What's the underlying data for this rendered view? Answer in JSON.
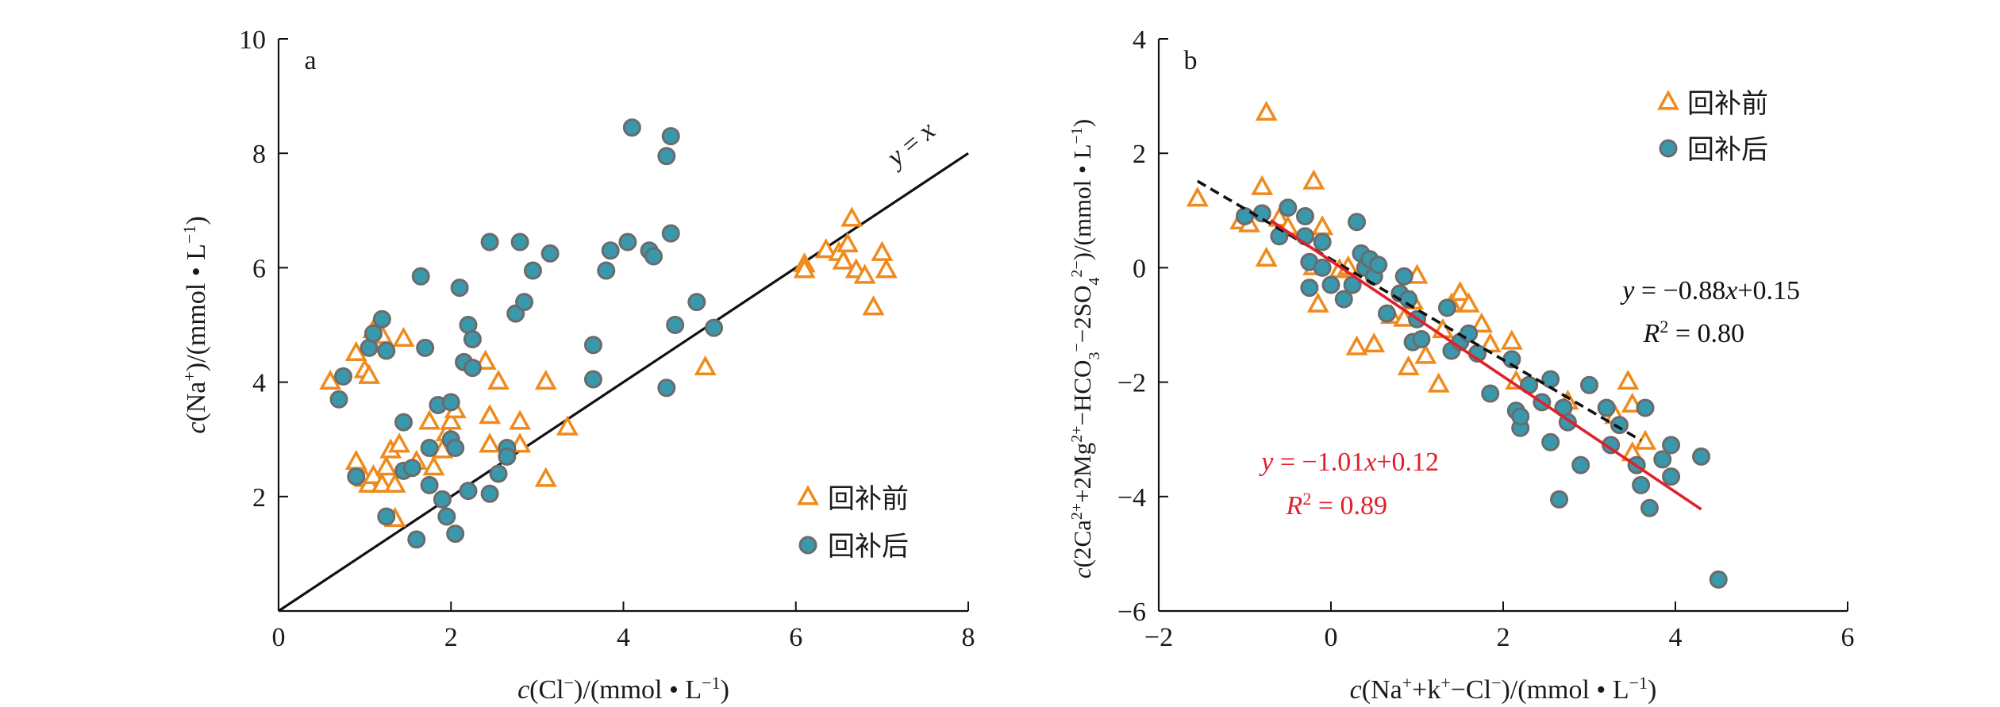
{
  "chart_data": [
    {
      "panel": "a",
      "type": "scatter",
      "xlabel": "c(Cl⁻)/(mmol • L⁻¹)",
      "ylabel": "c(Na⁺)/(mmol • L⁻¹)",
      "xlim": [
        0,
        8
      ],
      "ylim": [
        0,
        10
      ],
      "xticks": [
        "0",
        "2",
        "4",
        "6",
        "8"
      ],
      "yticks": [
        "2",
        "4",
        "6",
        "8",
        "10"
      ],
      "legend_position": "bottom-right",
      "reference_line": {
        "label": "y = x",
        "from": [
          0,
          0
        ],
        "to": [
          8,
          8
        ],
        "color": "#111111"
      },
      "series": [
        {
          "name": "回补前",
          "marker": "triangle",
          "color": "#f08a1c",
          "points": [
            [
              0.6,
              4.0
            ],
            [
              0.9,
              4.5
            ],
            [
              1.0,
              4.2
            ],
            [
              1.05,
              4.1
            ],
            [
              1.1,
              4.9
            ],
            [
              1.2,
              4.8
            ],
            [
              1.45,
              4.75
            ],
            [
              0.9,
              2.6
            ],
            [
              1.0,
              2.3
            ],
            [
              1.05,
              2.2
            ],
            [
              1.1,
              2.35
            ],
            [
              1.2,
              2.2
            ],
            [
              1.25,
              2.5
            ],
            [
              1.3,
              2.8
            ],
            [
              1.35,
              2.2
            ],
            [
              1.4,
              2.9
            ],
            [
              1.35,
              1.6
            ],
            [
              1.6,
              2.6
            ],
            [
              1.75,
              3.3
            ],
            [
              1.8,
              2.5
            ],
            [
              1.9,
              2.8
            ],
            [
              1.95,
              3.1
            ],
            [
              2.0,
              3.3
            ],
            [
              2.05,
              3.5
            ],
            [
              2.4,
              4.35
            ],
            [
              2.45,
              3.4
            ],
            [
              2.45,
              2.9
            ],
            [
              2.55,
              4.0
            ],
            [
              2.8,
              3.3
            ],
            [
              2.8,
              2.9
            ],
            [
              3.1,
              4.0
            ],
            [
              3.1,
              2.3
            ],
            [
              3.35,
              3.2
            ],
            [
              4.95,
              4.25
            ],
            [
              6.1,
              6.05
            ],
            [
              6.1,
              5.95
            ],
            [
              6.35,
              6.3
            ],
            [
              6.5,
              6.25
            ],
            [
              6.55,
              6.1
            ],
            [
              6.6,
              6.4
            ],
            [
              6.65,
              6.85
            ],
            [
              6.7,
              5.95
            ],
            [
              6.8,
              5.85
            ],
            [
              6.9,
              5.3
            ],
            [
              7.0,
              6.25
            ],
            [
              7.05,
              5.95
            ]
          ]
        },
        {
          "name": "回补后",
          "marker": "circle",
          "color": "#3a98ad",
          "points": [
            [
              0.7,
              3.7
            ],
            [
              0.75,
              4.1
            ],
            [
              0.9,
              2.35
            ],
            [
              1.05,
              4.6
            ],
            [
              1.1,
              4.85
            ],
            [
              1.2,
              5.1
            ],
            [
              1.25,
              4.55
            ],
            [
              1.25,
              1.65
            ],
            [
              1.45,
              3.3
            ],
            [
              1.45,
              2.45
            ],
            [
              1.55,
              2.5
            ],
            [
              1.65,
              5.85
            ],
            [
              1.7,
              4.6
            ],
            [
              1.75,
              2.2
            ],
            [
              1.75,
              2.85
            ],
            [
              1.85,
              3.6
            ],
            [
              1.9,
              1.95
            ],
            [
              1.95,
              1.65
            ],
            [
              2.0,
              3.65
            ],
            [
              2.0,
              3.0
            ],
            [
              2.05,
              1.35
            ],
            [
              2.05,
              2.85
            ],
            [
              2.1,
              5.65
            ],
            [
              2.15,
              4.35
            ],
            [
              2.2,
              5.0
            ],
            [
              2.25,
              4.25
            ],
            [
              2.25,
              4.75
            ],
            [
              2.2,
              2.1
            ],
            [
              2.45,
              6.45
            ],
            [
              2.45,
              2.05
            ],
            [
              2.55,
              2.4
            ],
            [
              2.65,
              2.85
            ],
            [
              2.65,
              2.7
            ],
            [
              2.75,
              5.2
            ],
            [
              2.8,
              6.45
            ],
            [
              2.85,
              5.4
            ],
            [
              2.95,
              5.95
            ],
            [
              3.15,
              6.25
            ],
            [
              3.65,
              4.65
            ],
            [
              3.65,
              4.05
            ],
            [
              3.8,
              5.95
            ],
            [
              3.85,
              6.3
            ],
            [
              4.05,
              6.45
            ],
            [
              4.1,
              8.45
            ],
            [
              4.3,
              6.3
            ],
            [
              4.35,
              6.2
            ],
            [
              4.5,
              7.95
            ],
            [
              4.5,
              3.9
            ],
            [
              4.55,
              8.3
            ],
            [
              4.55,
              6.6
            ],
            [
              4.6,
              5.0
            ],
            [
              4.85,
              5.4
            ],
            [
              5.05,
              4.95
            ],
            [
              1.6,
              1.25
            ]
          ]
        }
      ]
    },
    {
      "panel": "b",
      "type": "scatter",
      "xlabel": "c(Na⁺+k⁺−Cl⁻)/(mmol • L⁻¹)",
      "ylabel": "c(2Ca²⁺+2Mg²⁺−HCO₃⁻−2SO₄²⁻)/(mmol • L⁻¹)",
      "xlim": [
        -2,
        6
      ],
      "ylim": [
        -6,
        4
      ],
      "xticks": [
        "−2",
        "0",
        "2",
        "4",
        "6"
      ],
      "yticks": [
        "−6",
        "−4",
        "−2",
        "0",
        "2",
        "4"
      ],
      "legend_position": "top-right",
      "fits": [
        {
          "series": "回补前",
          "equation": "y = −0.88x+0.15",
          "r2": "R² = 0.80",
          "color": "#111111",
          "style": "dashed",
          "x_range": [
            -1.55,
            3.6
          ],
          "slope": -0.88,
          "intercept": 0.15
        },
        {
          "series": "回补后",
          "equation": "y = −1.01x+0.12",
          "r2": "R² = 0.89",
          "color": "#e0202a",
          "style": "solid",
          "x_range": [
            -0.7,
            4.3
          ],
          "slope": -1.01,
          "intercept": 0.12
        }
      ],
      "series": [
        {
          "name": "回补前",
          "marker": "triangle",
          "color": "#f08a1c",
          "points": [
            [
              -1.55,
              1.2
            ],
            [
              -1.05,
              0.8
            ],
            [
              -0.95,
              0.75
            ],
            [
              -0.8,
              1.4
            ],
            [
              -0.75,
              2.7
            ],
            [
              -0.75,
              0.15
            ],
            [
              -0.6,
              0.85
            ],
            [
              -0.5,
              0.7
            ],
            [
              -0.2,
              1.5
            ],
            [
              -0.2,
              0.0
            ],
            [
              -0.15,
              -0.65
            ],
            [
              -0.1,
              0.7
            ],
            [
              0.1,
              -0.05
            ],
            [
              0.2,
              0.0
            ],
            [
              0.3,
              -1.4
            ],
            [
              0.5,
              -1.35
            ],
            [
              0.7,
              -0.85
            ],
            [
              0.85,
              -0.9
            ],
            [
              0.9,
              -1.75
            ],
            [
              0.95,
              -0.6
            ],
            [
              1.0,
              -0.15
            ],
            [
              1.1,
              -1.55
            ],
            [
              1.25,
              -2.05
            ],
            [
              1.3,
              -1.1
            ],
            [
              1.4,
              -0.65
            ],
            [
              1.5,
              -0.45
            ],
            [
              1.6,
              -0.65
            ],
            [
              1.75,
              -1.0
            ],
            [
              1.85,
              -1.35
            ],
            [
              2.1,
              -1.3
            ],
            [
              2.15,
              -2.0
            ],
            [
              2.75,
              -2.35
            ],
            [
              3.3,
              -2.6
            ],
            [
              3.45,
              -2.0
            ],
            [
              3.5,
              -2.4
            ],
            [
              3.5,
              -3.25
            ],
            [
              3.65,
              -3.05
            ]
          ]
        },
        {
          "name": "回补后",
          "marker": "circle",
          "color": "#3a98ad",
          "points": [
            [
              -1.0,
              0.9
            ],
            [
              -0.8,
              0.95
            ],
            [
              -0.6,
              0.55
            ],
            [
              -0.5,
              1.05
            ],
            [
              -0.3,
              0.9
            ],
            [
              -0.3,
              0.55
            ],
            [
              -0.25,
              -0.35
            ],
            [
              -0.25,
              0.1
            ],
            [
              -0.1,
              0.45
            ],
            [
              -0.1,
              0.0
            ],
            [
              0.0,
              -0.3
            ],
            [
              0.15,
              -0.55
            ],
            [
              0.25,
              -0.3
            ],
            [
              0.3,
              0.8
            ],
            [
              0.35,
              0.25
            ],
            [
              0.4,
              0.0
            ],
            [
              0.45,
              0.15
            ],
            [
              0.5,
              -0.15
            ],
            [
              0.55,
              0.05
            ],
            [
              0.65,
              -0.8
            ],
            [
              0.8,
              -0.45
            ],
            [
              0.85,
              -0.15
            ],
            [
              0.9,
              -0.55
            ],
            [
              0.95,
              -1.3
            ],
            [
              1.0,
              -0.9
            ],
            [
              1.05,
              -1.25
            ],
            [
              1.35,
              -0.7
            ],
            [
              1.4,
              -1.45
            ],
            [
              1.5,
              -1.3
            ],
            [
              1.6,
              -1.15
            ],
            [
              1.7,
              -1.5
            ],
            [
              1.85,
              -2.2
            ],
            [
              2.1,
              -1.6
            ],
            [
              2.15,
              -2.5
            ],
            [
              2.2,
              -2.8
            ],
            [
              2.2,
              -2.6
            ],
            [
              2.3,
              -2.05
            ],
            [
              2.45,
              -2.35
            ],
            [
              2.55,
              -1.95
            ],
            [
              2.55,
              -3.05
            ],
            [
              2.7,
              -2.45
            ],
            [
              2.75,
              -2.7
            ],
            [
              2.9,
              -3.45
            ],
            [
              3.0,
              -2.05
            ],
            [
              3.2,
              -2.45
            ],
            [
              3.25,
              -3.1
            ],
            [
              3.35,
              -2.75
            ],
            [
              3.55,
              -3.45
            ],
            [
              3.6,
              -3.8
            ],
            [
              3.65,
              -2.45
            ],
            [
              3.7,
              -4.2
            ],
            [
              3.85,
              -3.35
            ],
            [
              3.95,
              -3.1
            ],
            [
              3.95,
              -3.65
            ],
            [
              4.3,
              -3.3
            ],
            [
              4.5,
              -5.45
            ],
            [
              2.65,
              -4.05
            ]
          ]
        }
      ]
    }
  ],
  "panels": {
    "a": {
      "letter": "a",
      "ref_line_label_y": "y",
      "ref_line_label_eq": " = ",
      "ref_line_label_x": "x"
    },
    "b": {
      "letter": "b"
    }
  },
  "colors": {
    "triangle": "#f08a1c",
    "circle_fill": "#3a98ad",
    "circle_stroke": "#6b6b6b",
    "axis": "#111111",
    "fit_black": "#111111",
    "fit_red": "#e0202a",
    "eq_red": "#e0202a"
  }
}
